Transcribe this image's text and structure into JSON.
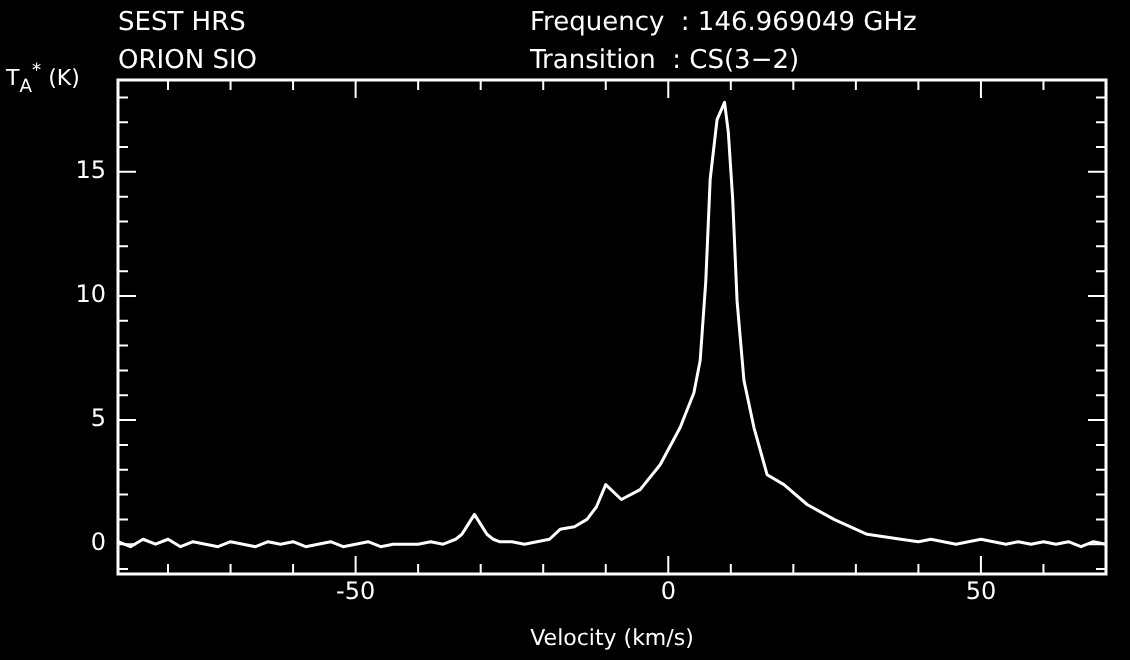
{
  "chart_data": {
    "type": "line",
    "xlabel": "Velocity (km/s)",
    "ylabel": "T$_{A}$$^{*}$ (K)",
    "annotations": [
      "SEST HRS",
      "ORION SIO",
      "Frequency  : 146.969049 GHz",
      "Transition  : CS(3−2)"
    ],
    "x": [
      -88,
      -86,
      -84,
      -82,
      -80,
      -78,
      -76,
      -74,
      -72,
      -70,
      -68,
      -66,
      -64,
      -62,
      -60,
      -58,
      -56,
      -54,
      -52,
      -50,
      -48,
      -46,
      -44,
      -42,
      -40,
      -38,
      -36,
      -34,
      -33,
      -32,
      -31,
      -30,
      -29,
      -28,
      -27,
      -25,
      -23,
      -21,
      -19,
      -17.3,
      -15,
      -13,
      -11.5,
      -10,
      -7.5,
      -4.5,
      -1.3,
      1.9,
      4.1,
      5.1,
      6,
      6.7,
      7.8,
      9,
      9.6,
      10.3,
      11,
      12.1,
      13.7,
      15.8,
      18.5,
      22.2,
      26.5,
      31.8,
      37.2,
      40,
      42,
      44,
      46,
      48,
      50,
      52,
      54,
      56,
      58,
      60,
      62,
      64,
      66,
      68,
      70
    ],
    "series": [
      {
        "color": "#ffffff",
        "values": [
          0.1,
          -0.1,
          0.2,
          0.0,
          0.2,
          -0.1,
          0.1,
          0.0,
          -0.1,
          0.1,
          0.0,
          -0.1,
          0.1,
          0.0,
          0.1,
          -0.1,
          0.0,
          0.1,
          -0.1,
          0.0,
          0.1,
          -0.1,
          0.0,
          0.0,
          0.0,
          0.1,
          0.0,
          0.2,
          0.4,
          0.8,
          1.2,
          0.8,
          0.4,
          0.2,
          0.1,
          0.1,
          0.0,
          0.1,
          0.2,
          0.6,
          0.7,
          1.0,
          1.5,
          2.4,
          1.8,
          2.2,
          3.2,
          4.7,
          6.1,
          7.4,
          10.6,
          14.7,
          17.1,
          17.8,
          16.6,
          13.9,
          9.8,
          6.6,
          4.7,
          2.8,
          2.4,
          1.6,
          1.0,
          0.4,
          0.2,
          0.1,
          0.2,
          0.1,
          0.0,
          0.1,
          0.2,
          0.1,
          0.0,
          0.1,
          0.0,
          0.1,
          0.0,
          0.1,
          -0.1,
          0.1,
          0.0
        ]
      }
    ],
    "xlim": [
      -88,
      70
    ],
    "xticks": [
      {
        "value": -80,
        "label": null
      },
      {
        "value": -70,
        "label": null
      },
      {
        "value": -60,
        "label": null
      },
      -50,
      {
        "value": -40,
        "label": null
      },
      {
        "value": -30,
        "label": null
      },
      {
        "value": -20,
        "label": null
      },
      {
        "value": -10,
        "label": null
      },
      0,
      {
        "value": 10,
        "label": null
      },
      {
        "value": 20,
        "label": null
      },
      {
        "value": 30,
        "label": null
      },
      {
        "value": 40,
        "label": null
      },
      50,
      {
        "value": 60,
        "label": null
      }
    ],
    "ylim": [
      -1.2,
      18.7
    ],
    "yticks": [
      {
        "value": -1,
        "label": null
      },
      0,
      {
        "value": 1,
        "label": null
      },
      {
        "value": 2,
        "label": null
      },
      {
        "value": 3,
        "label": null
      },
      {
        "value": 4,
        "label": null
      },
      5,
      {
        "value": 6,
        "label": null
      },
      {
        "value": 7,
        "label": null
      },
      {
        "value": 8,
        "label": null
      },
      {
        "value": 9,
        "label": null
      },
      10,
      {
        "value": 11,
        "label": null
      },
      {
        "value": 12,
        "label": null
      },
      {
        "value": 13,
        "label": null
      },
      {
        "value": 14,
        "label": null
      },
      15,
      {
        "value": 16,
        "label": null
      },
      {
        "value": 17,
        "label": null
      },
      {
        "value": 18,
        "label": null
      }
    ],
    "grid": false,
    "legend": false,
    "marker": "none",
    "line_style": "solid"
  }
}
